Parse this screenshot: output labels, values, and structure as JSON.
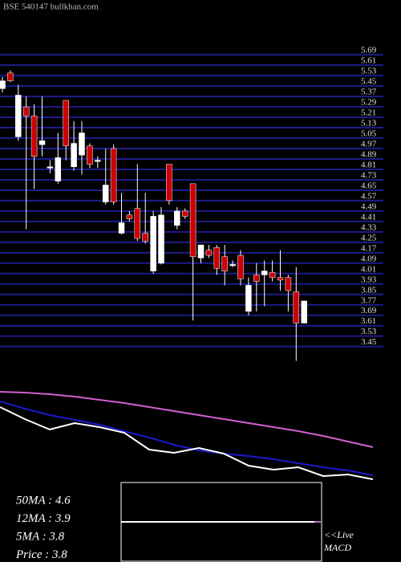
{
  "chart_data": [
    {
      "type": "candlestick",
      "title": "BSE 540147 bullkhan.com",
      "open": [
        5.43,
        5.55,
        5.06,
        5.29,
        5.22,
        5.0,
        4.82,
        4.72,
        5.34,
        4.83,
        4.92,
        4.99,
        4.88,
        4.56,
        4.97,
        4.32,
        4.46,
        4.51,
        4.32,
        4.03,
        4.09,
        4.85,
        4.38,
        4.49,
        4.7,
        4.13,
        4.19,
        4.21,
        4.14,
        4.08,
        4.15,
        3.72,
        4.0,
        4.0,
        4.02,
        3.98,
        3.98,
        3.87,
        3.63
      ],
      "high": [
        5.52,
        5.57,
        5.46,
        5.37,
        5.31,
        5.37,
        4.88,
        5.09,
        5.34,
        5.18,
        5.18,
        5.01,
        4.91,
        4.97,
        5.0,
        4.63,
        4.49,
        4.85,
        4.63,
        4.49,
        4.52,
        4.85,
        4.52,
        4.51,
        4.7,
        4.23,
        4.23,
        4.23,
        4.23,
        4.11,
        4.19,
        3.98,
        4.09,
        4.11,
        4.11,
        4.19,
        4.0,
        4.06,
        3.8
      ],
      "low": [
        5.4,
        5.48,
        5.03,
        4.35,
        4.66,
        4.91,
        4.78,
        4.7,
        4.88,
        4.8,
        4.77,
        4.82,
        4.82,
        4.54,
        4.54,
        4.31,
        4.41,
        4.26,
        4.24,
        4.01,
        4.08,
        4.54,
        4.35,
        4.43,
        3.65,
        4.09,
        4.13,
        4.0,
        3.92,
        4.06,
        3.92,
        3.69,
        3.72,
        3.76,
        3.95,
        3.88,
        3.72,
        3.34,
        3.63
      ],
      "close": [
        5.49,
        5.49,
        5.38,
        5.22,
        4.91,
        5.03,
        4.83,
        4.9,
        4.99,
        5.01,
        5.09,
        4.85,
        4.88,
        4.69,
        4.56,
        4.4,
        4.43,
        4.28,
        4.26,
        4.45,
        4.46,
        4.57,
        4.49,
        4.45,
        4.14,
        4.23,
        4.15,
        4.05,
        4.03,
        4.08,
        3.97,
        3.92,
        3.95,
        4.03,
        3.98,
        3.96,
        3.88,
        3.63,
        3.8
      ],
      "up_color": "#ffffff",
      "down_color": "#cc0000",
      "grid_color": "#1c1c8c",
      "ylim": [
        3.3,
        5.95
      ],
      "yticks": [
        5.69,
        5.61,
        5.53,
        5.45,
        5.37,
        5.29,
        5.21,
        5.13,
        5.05,
        4.97,
        4.89,
        4.81,
        4.73,
        4.65,
        4.57,
        4.49,
        4.41,
        4.33,
        4.25,
        4.17,
        4.09,
        4.01,
        3.93,
        3.85,
        3.77,
        3.69,
        3.61,
        3.53,
        3.45
      ],
      "grid": true
    },
    {
      "type": "line",
      "series": [
        {
          "name": "50MA",
          "color": "#d060d0",
          "values": [
            5.98,
            5.96,
            5.92,
            5.86,
            5.78,
            5.7,
            5.6,
            5.5,
            5.4,
            5.3,
            5.2,
            5.1,
            5.0,
            4.88,
            4.74,
            4.6
          ]
        },
        {
          "name": "12MA",
          "color": "#1a1acc",
          "values": [
            5.74,
            5.56,
            5.4,
            5.28,
            5.16,
            5.0,
            4.84,
            4.66,
            4.52,
            4.44,
            4.38,
            4.3,
            4.2,
            4.1,
            4.02,
            3.9
          ]
        },
        {
          "name": "5MA",
          "color": "#ffffff",
          "values": [
            5.6,
            5.3,
            5.04,
            5.2,
            5.1,
            4.96,
            4.54,
            4.46,
            4.58,
            4.44,
            4.14,
            4.04,
            4.1,
            3.88,
            3.92,
            3.8
          ]
        }
      ],
      "ylim": [
        3.44,
        6.14
      ],
      "legend": [
        "50MA : 4.6",
        "12MA : 3.9",
        "5MA : 3.8",
        "Price   : 3.8"
      ],
      "macd_label": [
        "<<Live",
        "MACD"
      ]
    }
  ]
}
